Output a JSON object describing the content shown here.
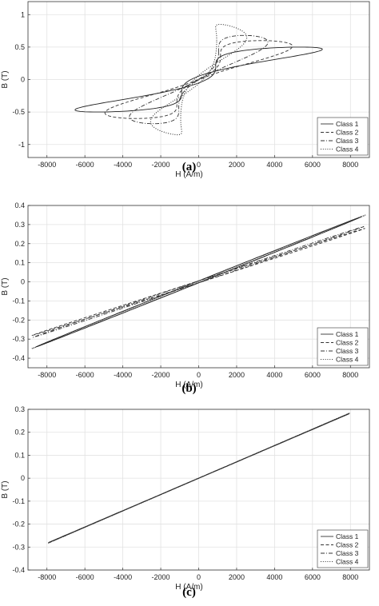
{
  "chart_data": [
    {
      "type": "line",
      "panel_label": "(a)",
      "xlabel": "H (A/m)",
      "ylabel": "B (T)",
      "xlim": [
        -9000,
        9000
      ],
      "ylim": [
        -1.2,
        1.2
      ],
      "xticks": [
        -8000,
        -6000,
        -4000,
        -2000,
        0,
        2000,
        4000,
        6000,
        8000
      ],
      "yticks": [
        -1,
        -0.5,
        0,
        0.5,
        1
      ],
      "ytick_labels": [
        "-1",
        "-0.5",
        "0",
        "0.5",
        "1"
      ],
      "grid": true,
      "legend_position": "bottom-right",
      "series": [
        {
          "name": "Class 1",
          "dash": "solid",
          "loop": {
            "hmax": 6500,
            "bmax": 0.5,
            "hc": 900,
            "br": 0.2,
            "p": 3
          }
        },
        {
          "name": "Class 2",
          "dash": "dashed",
          "loop": {
            "hmax": 4900,
            "bmax": 0.6,
            "hc": 1150,
            "br": 0.35,
            "p": 3
          }
        },
        {
          "name": "Class 3",
          "dash": "dashdot",
          "loop": {
            "hmax": 3600,
            "bmax": 0.68,
            "hc": 1050,
            "br": 0.42,
            "p": 3
          }
        },
        {
          "name": "Class 4",
          "dash": "dotted",
          "loop": {
            "hmax": 2500,
            "bmax": 0.85,
            "hc": 950,
            "br": 0.6,
            "p": 5
          }
        }
      ]
    },
    {
      "type": "line",
      "panel_label": "(b)",
      "xlabel": "H (A/m)",
      "ylabel": "B (T)",
      "xlim": [
        -9000,
        9000
      ],
      "ylim": [
        -0.45,
        0.4
      ],
      "xticks": [
        -8000,
        -6000,
        -4000,
        -2000,
        0,
        2000,
        4000,
        6000,
        8000
      ],
      "yticks": [
        -0.4,
        -0.3,
        -0.2,
        -0.1,
        0,
        0.1,
        0.2,
        0.3,
        0.4
      ],
      "ytick_labels": [
        "-0.4",
        "-0.3",
        "-0.2",
        "-0.1",
        "0",
        "0.1",
        "0.2",
        "0.3",
        "0.4"
      ],
      "grid": true,
      "legend_position": "bottom-right",
      "series": [
        {
          "name": "Class 1",
          "dash": "solid",
          "loop": {
            "hmax": 8500,
            "bmax": 0.34,
            "hc": 1000,
            "br": 0.045,
            "p": 1
          }
        },
        {
          "name": "Class 2",
          "dash": "dashed",
          "loop": {
            "hmax": 8700,
            "bmax": 0.28,
            "hc": 1100,
            "br": 0.04,
            "p": 1
          }
        },
        {
          "name": "Class 3",
          "dash": "dashdot",
          "loop": {
            "hmax": 8650,
            "bmax": 0.29,
            "hc": 1050,
            "br": 0.04,
            "p": 1
          }
        },
        {
          "name": "Class 4",
          "dash": "dotted",
          "loop": {
            "hmax": 8700,
            "bmax": 0.35,
            "hc": 1300,
            "br": 0.055,
            "p": 1
          }
        }
      ]
    },
    {
      "type": "line",
      "panel_label": "(c)",
      "xlabel": "H (A/m)",
      "ylabel": "B (T)",
      "xlim": [
        -9000,
        9000
      ],
      "ylim": [
        -0.4,
        0.3
      ],
      "xticks": [
        -8000,
        -6000,
        -4000,
        -2000,
        0,
        2000,
        4000,
        6000,
        8000
      ],
      "yticks": [
        -0.4,
        -0.3,
        -0.2,
        -0.1,
        0,
        0.1,
        0.2,
        0.3
      ],
      "ytick_labels": [
        "-0.4",
        "-0.3",
        "-0.2",
        "-0.1",
        "0",
        "0.1",
        "0.2",
        "0.3"
      ],
      "grid": true,
      "legend_position": "bottom-right",
      "series": [
        {
          "name": "Class 1",
          "dash": "solid",
          "loop": {
            "hmax": 7900,
            "bmax": 0.28,
            "hc": 500,
            "br": 0.018,
            "p": 1
          }
        },
        {
          "name": "Class 2",
          "dash": "dashed",
          "loop": {
            "hmax": 7950,
            "bmax": 0.283,
            "hc": 520,
            "br": 0.019,
            "p": 1
          }
        },
        {
          "name": "Class 3",
          "dash": "dashdot",
          "loop": {
            "hmax": 7900,
            "bmax": 0.282,
            "hc": 510,
            "br": 0.018,
            "p": 1
          }
        },
        {
          "name": "Class 4",
          "dash": "dotted",
          "loop": {
            "hmax": 7950,
            "bmax": 0.284,
            "hc": 530,
            "br": 0.019,
            "p": 1
          }
        }
      ]
    }
  ]
}
